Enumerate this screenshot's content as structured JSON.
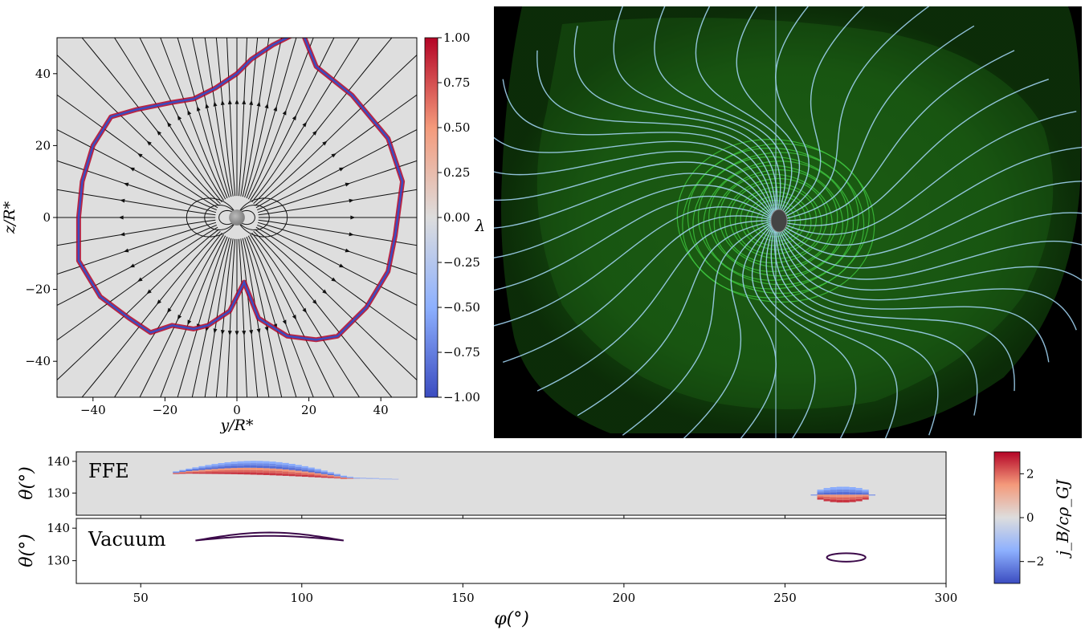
{
  "chart_data": [
    {
      "type": "heatmap",
      "panel": "top-left",
      "xlabel": "y/R*",
      "ylabel": "z/R*",
      "xlim": [
        -50,
        50
      ],
      "ylim": [
        -50,
        50
      ],
      "xticks": [
        -40,
        -20,
        0,
        20,
        40
      ],
      "xtick_labels": [
        "−40",
        "−20",
        "0",
        "20",
        "40"
      ],
      "yticks": [
        40,
        20,
        0,
        -20,
        -40
      ],
      "ytick_labels": [
        "40",
        "20",
        "0",
        "−20",
        "−40"
      ],
      "colorbar": {
        "label": "λ",
        "range": [
          -1.0,
          1.0
        ],
        "ticks": [
          1.0,
          0.75,
          0.5,
          0.25,
          0.0,
          -0.25,
          -0.5,
          -0.75,
          -1.0
        ],
        "tick_labels": [
          "1.00",
          "0.75",
          "0.50",
          "0.25",
          "0.00",
          "−0.25",
          "−0.50",
          "−0.75",
          "−1.00"
        ],
        "colors": [
          "#b40426",
          "#f7b89c",
          "#dddddd",
          "#aec6f7",
          "#3b4cc0"
        ]
      },
      "star_radius": 2.2,
      "shell_outline": [
        [
          -40,
          20
        ],
        [
          -35,
          28
        ],
        [
          -28,
          30
        ],
        [
          -18,
          32
        ],
        [
          -12,
          33
        ],
        [
          -6,
          36
        ],
        [
          0,
          40
        ],
        [
          4,
          44
        ],
        [
          10,
          48
        ],
        [
          18,
          52
        ],
        [
          22,
          42
        ],
        [
          32,
          34
        ],
        [
          42,
          22
        ],
        [
          46,
          10
        ],
        [
          44,
          -5
        ],
        [
          42,
          -15
        ],
        [
          36,
          -25
        ],
        [
          28,
          -33
        ],
        [
          22,
          -34
        ],
        [
          14,
          -33
        ],
        [
          6,
          -28
        ],
        [
          2,
          -18
        ],
        [
          -2,
          -26
        ],
        [
          -8,
          -30
        ],
        [
          -12,
          -31
        ],
        [
          -18,
          -30
        ],
        [
          -24,
          -32
        ],
        [
          -30,
          -28
        ],
        [
          -38,
          -22
        ],
        [
          -44,
          -12
        ],
        [
          -44,
          0
        ],
        [
          -43,
          10
        ]
      ]
    },
    {
      "type": "heatmap",
      "panel": "bottom",
      "xlabel": "φ(°)",
      "xlim": [
        30,
        300
      ],
      "xticks": [
        50,
        100,
        150,
        200,
        250,
        300
      ],
      "xtick_labels": [
        "50",
        "100",
        "150",
        "200",
        "250",
        "300"
      ],
      "colorbar": {
        "label": "j_B/cρ_GJ",
        "range": [
          -3,
          3
        ],
        "ticks": [
          2,
          0,
          -2
        ],
        "tick_labels": [
          "2",
          "0",
          "−2"
        ],
        "colors": [
          "#b40426",
          "#f7b89c",
          "#dddddd",
          "#aec6f7",
          "#3b4cc0"
        ]
      },
      "subpanels": [
        {
          "label": "FFE",
          "ylabel": "θ(°)",
          "ylim": [
            123,
            143
          ],
          "yticks": [
            140,
            130
          ],
          "ytick_labels": [
            "140",
            "130"
          ],
          "regions": [
            {
              "phi": [
                60,
                128
              ],
              "theta_center": 136.5,
              "theta_halfwidth": 2.2,
              "arc_peak": 138.5
            },
            {
              "phi": [
                258,
                276
              ],
              "theta_center": 129.5,
              "theta_halfwidth": 2.5,
              "arc_peak": 129.5
            }
          ]
        },
        {
          "label": "Vacuum",
          "ylabel": "θ(°)",
          "ylim": [
            123,
            143
          ],
          "yticks": [
            140,
            130
          ],
          "ytick_labels": [
            "140",
            "130"
          ],
          "contours": [
            {
              "phi_range": [
                67,
                113
              ],
              "theta_low": 136.2,
              "theta_high": 138.8
            },
            {
              "phi_center": 269,
              "phi_halfwidth": 6,
              "theta_center": 131,
              "theta_halfwidth": 1.3
            }
          ],
          "contour_color": "#3c0a4a"
        }
      ]
    }
  ],
  "render": {
    "accent_field": "#9fd2ef",
    "accent_green": "#3fc53f",
    "background_3d": "#000000"
  }
}
